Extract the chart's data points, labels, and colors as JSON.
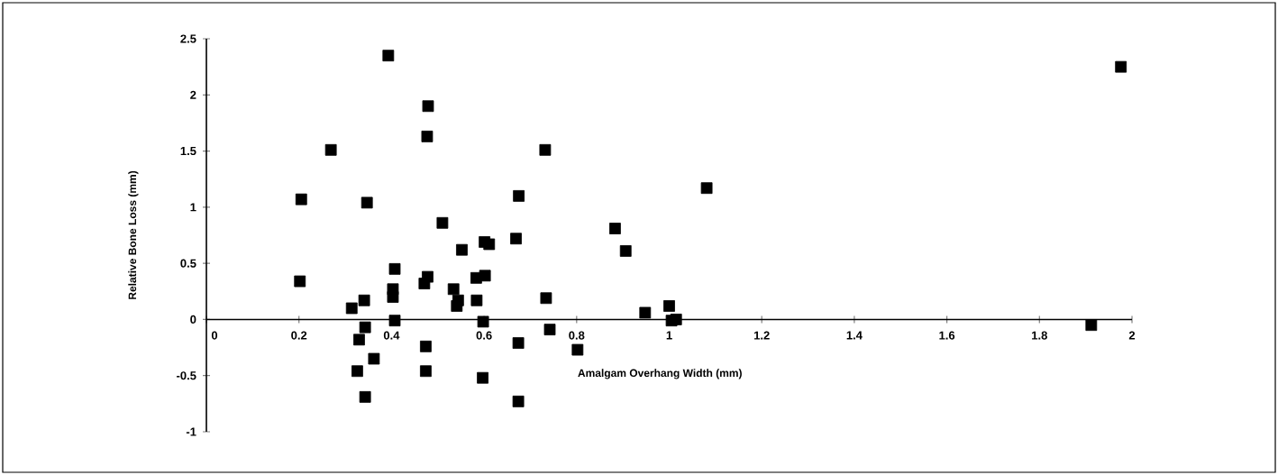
{
  "chart_data": {
    "type": "scatter",
    "xlabel": "Amalgam Overhang Width (mm)",
    "ylabel": "Relative Bone Loss (mm)",
    "x": [
      0.393,
      0.479,
      0.477,
      0.269,
      0.205,
      0.347,
      0.407,
      0.478,
      0.471,
      0.202,
      0.403,
      0.403,
      0.341,
      0.314,
      0.407,
      0.343,
      0.33,
      0.362,
      0.326,
      0.343,
      0.474,
      0.474,
      0.51,
      0.552,
      0.601,
      0.611,
      0.669,
      0.675,
      0.732,
      0.883,
      0.906,
      0.602,
      0.583,
      0.534,
      0.544,
      0.541,
      0.584,
      0.598,
      0.734,
      0.742,
      0.674,
      0.802,
      0.597,
      0.674,
      0.948,
      1.0,
      1.005,
      1.015,
      1.081,
      1.912,
      1.976
    ],
    "values": [
      2.35,
      1.9,
      1.63,
      1.51,
      1.07,
      1.04,
      0.45,
      0.38,
      0.32,
      0.34,
      0.27,
      0.2,
      0.17,
      0.1,
      -0.01,
      -0.07,
      -0.18,
      -0.35,
      -0.46,
      -0.69,
      -0.24,
      -0.46,
      0.86,
      0.62,
      0.69,
      0.67,
      0.72,
      1.1,
      1.51,
      0.81,
      0.61,
      0.39,
      0.37,
      0.27,
      0.17,
      0.12,
      0.17,
      -0.02,
      0.19,
      -0.09,
      -0.21,
      -0.27,
      -0.52,
      -0.73,
      0.06,
      0.12,
      -0.01,
      0.0,
      1.17,
      -0.05,
      2.25
    ],
    "color": "#000000",
    "marker": "square",
    "grid": false,
    "xlim": [
      0,
      2
    ],
    "ylim": [
      -1,
      2.5
    ],
    "xticks": [
      0,
      0.2,
      0.4,
      0.6,
      0.8,
      1,
      1.2,
      1.4,
      1.6,
      1.8,
      2
    ],
    "yticks": [
      -1,
      -0.5,
      0,
      0.5,
      1,
      1.5,
      2,
      2.5
    ]
  }
}
